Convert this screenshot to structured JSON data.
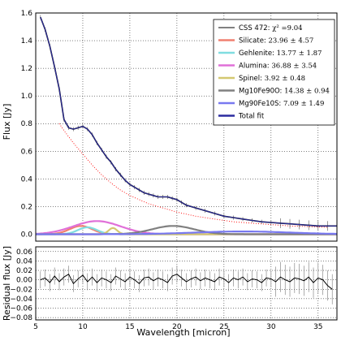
{
  "chart_data": [
    {
      "type": "line",
      "panel": "top",
      "title": "",
      "xlabel": "",
      "ylabel": "Flux [Jy]",
      "xlim": [
        5,
        37
      ],
      "ylim": [
        -0.05,
        1.6
      ],
      "grid": true,
      "legend_placement": "top-right",
      "xticks": [
        5,
        10,
        15,
        20,
        25,
        30,
        35
      ],
      "yticks": [
        0.0,
        0.2,
        0.4,
        0.6,
        0.8,
        1.0,
        1.2,
        1.4,
        1.6
      ],
      "ytick_labels": [
        "0.0",
        "0.2",
        "0.4",
        "0.6",
        "0.8",
        "1.0",
        "1.2",
        "1.4",
        "1.6"
      ],
      "series": [
        {
          "name": "CSS 472: χ² =9.04",
          "label_name": "CSS 472: ",
          "label_value": "χ² =9.04",
          "color": "#000000",
          "x": [
            5.5,
            6,
            6.5,
            7,
            7.5,
            8,
            8.5,
            9,
            9.5,
            10,
            10.5,
            11,
            11.5,
            12,
            12.5,
            13,
            13.5,
            14,
            14.5,
            15,
            15.5,
            16,
            16.5,
            17,
            17.5,
            18,
            18.5,
            19,
            19.5,
            20,
            20.5,
            21,
            22,
            23,
            24,
            25,
            26,
            27,
            28,
            29,
            30,
            31,
            32,
            33,
            34,
            35,
            36,
            37
          ],
          "y": [
            1.57,
            1.48,
            1.36,
            1.21,
            1.05,
            0.83,
            0.77,
            0.76,
            0.77,
            0.78,
            0.76,
            0.72,
            0.66,
            0.61,
            0.56,
            0.52,
            0.47,
            0.43,
            0.39,
            0.36,
            0.34,
            0.32,
            0.3,
            0.29,
            0.28,
            0.27,
            0.27,
            0.27,
            0.26,
            0.25,
            0.23,
            0.21,
            0.19,
            0.17,
            0.15,
            0.13,
            0.12,
            0.11,
            0.1,
            0.09,
            0.085,
            0.08,
            0.075,
            0.07,
            0.065,
            0.06,
            0.06,
            0.06
          ]
        },
        {
          "name": "Silicate: 23.96 ± 4.57",
          "label_name": "Silicate: ",
          "label_value": "23.96 ± 4.57",
          "color": "#f08070",
          "peak_x": 9.8,
          "peak_y": 0.06,
          "width": 1.2
        },
        {
          "name": "Gehlenite: 13.77 ± 1.87",
          "label_name": "Gehlenite: ",
          "label_value": "13.77 ± 1.87",
          "color": "#80dde0",
          "peak_x": 10.5,
          "peak_y": 0.05,
          "width": 1.0
        },
        {
          "name": "Alumina: 36.88 ± 3.54",
          "label_name": "Alumina: ",
          "label_value": "36.88 ± 3.54",
          "color": "#e070d8",
          "peak_x": 11.5,
          "peak_y": 0.095,
          "width": 2.5
        },
        {
          "name": "Spinel: 3.92 ± 0.48",
          "label_name": "Spinel: ",
          "label_value": "3.92 ± 0.48",
          "color": "#d4c870",
          "peak_x": 13.2,
          "peak_y": 0.045,
          "width": 0.45
        },
        {
          "name": "Mg10Fe90O: 14.38 ± 0.94",
          "label_name": "Mg10Fe90O: ",
          "label_value": "14.38 ± 0.94",
          "color": "#808080",
          "peak_x": 19.6,
          "peak_y": 0.06,
          "width": 2.2
        },
        {
          "name": "Mg90Fe10S: 7.09 ± 1.49",
          "label_name": "Mg90Fe10S: ",
          "label_value": "7.09 ± 1.49",
          "color": "#7878f0",
          "peak_x": 27.0,
          "peak_y": 0.02,
          "width": 5.0
        },
        {
          "name": "Total fit",
          "label_name": "Total fit",
          "label_value": "",
          "color": "#2c2ca0",
          "x": [
            5.5,
            6,
            6.5,
            7,
            7.5,
            8,
            8.5,
            9,
            9.5,
            10,
            10.5,
            11,
            11.5,
            12,
            12.5,
            13,
            13.5,
            14,
            14.5,
            15,
            15.5,
            16,
            16.5,
            17,
            17.5,
            18,
            18.5,
            19,
            19.5,
            20,
            20.5,
            21,
            22,
            23,
            24,
            25,
            26,
            27,
            28,
            29,
            30,
            31,
            32,
            33,
            34,
            35,
            36,
            37
          ],
          "y": [
            1.57,
            1.48,
            1.36,
            1.21,
            1.05,
            0.83,
            0.77,
            0.76,
            0.77,
            0.78,
            0.76,
            0.72,
            0.66,
            0.61,
            0.56,
            0.52,
            0.47,
            0.43,
            0.39,
            0.36,
            0.34,
            0.32,
            0.3,
            0.29,
            0.28,
            0.27,
            0.27,
            0.27,
            0.26,
            0.25,
            0.23,
            0.21,
            0.19,
            0.17,
            0.15,
            0.13,
            0.12,
            0.11,
            0.1,
            0.09,
            0.085,
            0.08,
            0.075,
            0.07,
            0.065,
            0.06,
            0.06,
            0.06
          ]
        },
        {
          "color": "#ff0000",
          "style": "dotted",
          "x": [
            7.5,
            8,
            9,
            10,
            11,
            12,
            13,
            14,
            15,
            16,
            17,
            18,
            19,
            20,
            22,
            24,
            26,
            28,
            30,
            32,
            34,
            36
          ],
          "y": [
            0.8,
            0.75,
            0.66,
            0.58,
            0.5,
            0.43,
            0.37,
            0.32,
            0.28,
            0.25,
            0.22,
            0.2,
            0.18,
            0.16,
            0.13,
            0.11,
            0.09,
            0.08,
            0.07,
            0.06,
            0.055,
            0.05
          ]
        }
      ]
    },
    {
      "type": "line",
      "panel": "bottom",
      "title": "",
      "xlabel": "Wavelength [micron]",
      "ylabel": "Residual flux [Jy]",
      "xlim": [
        5,
        37
      ],
      "ylim": [
        -0.085,
        0.07
      ],
      "grid": true,
      "xticks": [
        5,
        10,
        15,
        20,
        25,
        30,
        35
      ],
      "yticks": [
        0.06,
        0.04,
        0.02,
        0.0,
        -0.02,
        -0.04,
        -0.06,
        -0.08
      ],
      "ytick_labels": [
        "0.06",
        "0.04",
        "0.02",
        "0.00",
        "−0.02",
        "−0.04",
        "−0.06",
        "−0.08"
      ],
      "series": [
        {
          "color": "#000000",
          "x": [
            5.5,
            6,
            6.5,
            7,
            7.5,
            8,
            8.5,
            9,
            9.5,
            10,
            10.5,
            11,
            11.5,
            12,
            12.5,
            13,
            13.5,
            14,
            14.5,
            15,
            15.5,
            16,
            16.5,
            17,
            17.5,
            18,
            18.5,
            19,
            19.5,
            20,
            20.5,
            21,
            21.5,
            22,
            22.5,
            23,
            23.5,
            24,
            24.5,
            25,
            25.5,
            26,
            26.5,
            27,
            27.5,
            28,
            28.5,
            29,
            29.5,
            30,
            30.5,
            31,
            31.5,
            32,
            32.5,
            33,
            33.5,
            34,
            34.5,
            35,
            35.5,
            36,
            36.5
          ],
          "y": [
            0.0,
            0.004,
            -0.006,
            0.008,
            -0.004,
            0.006,
            0.012,
            -0.008,
            0.002,
            0.01,
            -0.004,
            0.006,
            -0.006,
            0.004,
            0.0,
            -0.006,
            0.008,
            0.002,
            -0.004,
            0.006,
            0.0,
            -0.008,
            0.004,
            0.006,
            -0.002,
            0.004,
            0.0,
            -0.006,
            0.008,
            0.012,
            0.004,
            -0.004,
            0.002,
            0.006,
            -0.002,
            0.004,
            0.0,
            -0.004,
            0.006,
            0.002,
            -0.006,
            0.004,
            0.0,
            0.006,
            -0.004,
            0.002,
            0.0,
            -0.006,
            0.004,
            0.002,
            -0.004,
            0.006,
            0.0,
            -0.004,
            0.004,
            0.002,
            -0.002,
            0.006,
            -0.006,
            0.004,
            0.0,
            -0.012,
            -0.02
          ]
        }
      ]
    }
  ]
}
